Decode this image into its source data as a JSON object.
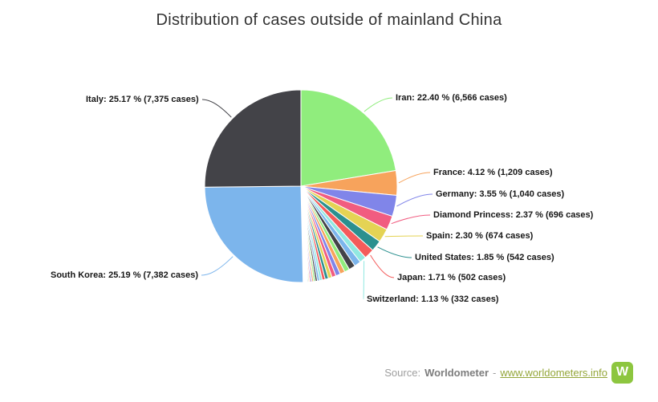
{
  "chart_data": {
    "type": "pie",
    "title": "Distribution of cases outside of mainland China",
    "legend_position": "none",
    "labels_style": "callout lines in slice color, bold black text",
    "slices": [
      {
        "id": "iran",
        "name": "Iran",
        "pct": 22.4,
        "cases": 6566,
        "label": "Iran: 22.40 % (6,566 cases)",
        "color": "#90ed7d"
      },
      {
        "id": "france",
        "name": "France",
        "pct": 4.12,
        "cases": 1209,
        "label": "France: 4.12 % (1,209 cases)",
        "color": "#f7a35c"
      },
      {
        "id": "germany",
        "name": "Germany",
        "pct": 3.55,
        "cases": 1040,
        "label": "Germany: 3.55 % (1,040 cases)",
        "color": "#8085e9"
      },
      {
        "id": "diamond-princess",
        "name": "Diamond Princess",
        "pct": 2.37,
        "cases": 696,
        "label": "Diamond Princess: 2.37 % (696 cases)",
        "color": "#f15c80"
      },
      {
        "id": "spain",
        "name": "Spain",
        "pct": 2.3,
        "cases": 674,
        "label": "Spain: 2.30 % (674 cases)",
        "color": "#e4d354"
      },
      {
        "id": "united-states",
        "name": "United States",
        "pct": 1.85,
        "cases": 542,
        "label": "United States: 1.85 % (542 cases)",
        "color": "#2b908f"
      },
      {
        "id": "japan",
        "name": "Japan",
        "pct": 1.71,
        "cases": 502,
        "label": "Japan: 1.71 % (502 cases)",
        "color": "#f45b5b"
      },
      {
        "id": "switzerland",
        "name": "Switzerland",
        "pct": 1.13,
        "cases": 332,
        "label": "Switzerland: 1.13 % (332 cases)",
        "color": "#91e8e1"
      },
      {
        "id": "south-korea",
        "name": "South Korea",
        "pct": 25.19,
        "cases": 7382,
        "label": "South Korea: 25.19 % (7,382 cases)",
        "color": "#7cb5ec"
      },
      {
        "id": "italy",
        "name": "Italy",
        "pct": 25.17,
        "cases": 7375,
        "label": "Italy: 25.17 % (7,375 cases)",
        "color": "#434348"
      }
    ],
    "unlabeled_slices_pct": [
      1.1,
      1.09,
      0.85,
      0.82,
      0.78,
      0.7,
      0.62,
      0.55,
      0.5,
      0.44,
      0.38,
      0.34,
      0.3,
      0.26,
      0.23,
      0.2,
      0.17,
      0.15,
      0.13,
      0.12,
      0.11,
      0.1,
      0.09,
      0.08,
      0.07,
      0.03
    ],
    "palette": [
      "#7cb5ec",
      "#434348",
      "#90ed7d",
      "#f7a35c",
      "#8085e9",
      "#f15c80",
      "#e4d354",
      "#2b908f",
      "#f45b5b",
      "#91e8e1"
    ],
    "slice_border_color": "#ffffff",
    "title_color": "#333333",
    "label_text_color": "#161616"
  },
  "footer": {
    "source_label": "Source:",
    "source_name": "Worldometer",
    "separator": "-",
    "link_text": "www.worldometers.info",
    "link_color": "#94a63a",
    "logo_letter": "W",
    "logo_color": "#8dc63f"
  }
}
